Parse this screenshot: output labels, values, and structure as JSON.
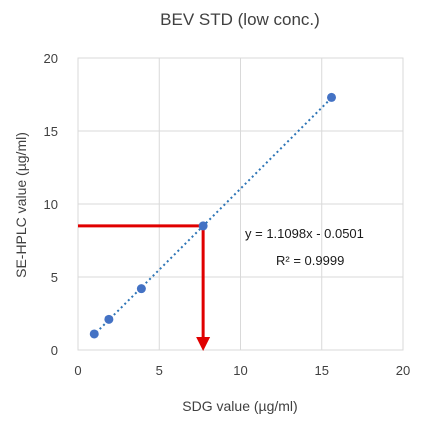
{
  "chart_data": {
    "type": "scatter",
    "title": "BEV STD (low conc.)",
    "xlabel": "SDG value (µg/ml)",
    "ylabel": "SE-HPLC value (µg/ml)",
    "xlim": [
      0,
      20
    ],
    "ylim": [
      0,
      20
    ],
    "xticks": [
      "0",
      "5",
      "10",
      "15",
      "20"
    ],
    "yticks": [
      "0",
      "5",
      "10",
      "15",
      "20"
    ],
    "grid": true,
    "legend": "none",
    "series": [
      {
        "x": [
          1.0,
          1.9,
          3.9,
          7.7,
          15.6
        ],
        "y": [
          1.1,
          2.1,
          4.2,
          8.5,
          17.3
        ],
        "color": "#4472c4"
      }
    ],
    "trendline": {
      "type": "linear",
      "slope": 1.1098,
      "intercept": -0.0501,
      "x_range": [
        0.9,
        15.6
      ],
      "color": "#2e75b6",
      "style": "dotted"
    },
    "annotations": {
      "equation": "y = 1.1098x - 0.0501",
      "r_squared": "R² = 0.9999"
    },
    "marker_lines": {
      "x": 7.7,
      "y": 8.5,
      "color": "#e00000"
    }
  }
}
